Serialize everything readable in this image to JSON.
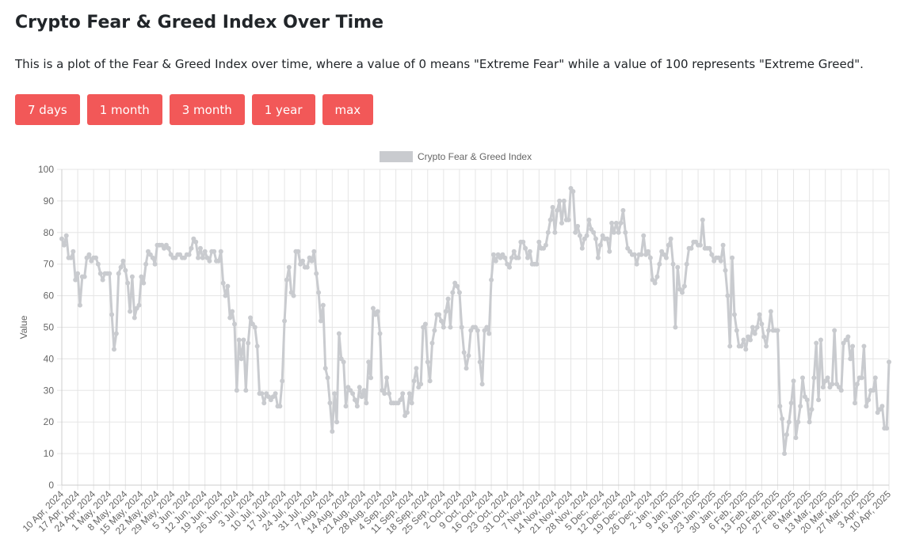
{
  "header": {
    "title": "Crypto Fear & Greed Index Over Time",
    "description": "This is a plot of the Fear & Greed Index over time, where a value of 0 means \"Extreme Fear\" while a value of 100 represents \"Extreme Greed\"."
  },
  "buttons": [
    "7 days",
    "1 month",
    "3 month",
    "1 year",
    "max"
  ],
  "chart_data": {
    "type": "line",
    "legend": "top",
    "grid": true,
    "ylabel": "Value",
    "ylim": [
      0,
      100
    ],
    "yticks": [
      0,
      10,
      20,
      30,
      40,
      50,
      60,
      70,
      80,
      90,
      100
    ],
    "categories": [
      "10 Apr, 2024",
      null,
      null,
      null,
      null,
      null,
      null,
      "17 Apr, 2024",
      null,
      null,
      null,
      null,
      null,
      null,
      "24 Apr, 2024",
      null,
      null,
      null,
      null,
      null,
      null,
      "1 May, 2024",
      null,
      null,
      null,
      null,
      null,
      null,
      "8 May, 2024",
      null,
      null,
      null,
      null,
      null,
      null,
      "15 May, 2024",
      null,
      null,
      null,
      null,
      null,
      null,
      "22 May, 2024",
      null,
      null,
      null,
      null,
      null,
      null,
      "29 May, 2024",
      null,
      null,
      null,
      null,
      null,
      null,
      "5 Jun, 2024",
      null,
      null,
      null,
      null,
      null,
      null,
      "12 Jun, 2024",
      null,
      null,
      null,
      null,
      null,
      null,
      "19 Jun, 2024",
      null,
      null,
      null,
      null,
      null,
      null,
      "26 Jun, 2024",
      null,
      null,
      null,
      null,
      null,
      null,
      "3 Jul, 2024",
      null,
      null,
      null,
      null,
      null,
      null,
      "10 Jul, 2024",
      null,
      null,
      null,
      null,
      null,
      null,
      "17 Jul, 2024",
      null,
      null,
      null,
      null,
      null,
      null,
      "24 Jul, 2024",
      null,
      null,
      null,
      null,
      null,
      null,
      "31 Jul, 2024",
      null,
      null,
      null,
      null,
      null,
      null,
      "7 Aug, 2024",
      null,
      null,
      null,
      null,
      null,
      null,
      "14 Aug, 2024",
      null,
      null,
      null,
      null,
      null,
      null,
      "21 Aug, 2024",
      null,
      null,
      null,
      null,
      null,
      null,
      "28 Aug, 2024",
      null,
      null,
      null,
      null,
      null,
      null,
      "4 Sep, 2024",
      null,
      null,
      null,
      null,
      null,
      null,
      "11 Sep, 2024",
      null,
      null,
      null,
      null,
      null,
      null,
      "18 Sep, 2024",
      null,
      null,
      null,
      null,
      null,
      null,
      "25 Sep, 2024",
      null,
      null,
      null,
      null,
      null,
      null,
      "2 Oct, 2024",
      null,
      null,
      null,
      null,
      null,
      null,
      "9 Oct, 2024",
      null,
      null,
      null,
      null,
      null,
      null,
      "16 Oct, 2024",
      null,
      null,
      null,
      null,
      null,
      null,
      "23 Oct, 2024",
      null,
      null,
      null,
      null,
      null,
      null,
      "31 Oct, 2024",
      null,
      null,
      null,
      null,
      null,
      null,
      "7 Nov, 2024",
      null,
      null,
      null,
      null,
      null,
      null,
      "14 Nov, 2024",
      null,
      null,
      null,
      null,
      null,
      null,
      "21 Nov, 2024",
      null,
      null,
      null,
      null,
      null,
      null,
      "28 Nov, 2024",
      null,
      null,
      null,
      null,
      null,
      null,
      "5 Dec, 2024",
      null,
      null,
      null,
      null,
      null,
      null,
      "12 Dec, 2024",
      null,
      null,
      null,
      null,
      null,
      null,
      "19 Dec, 2024",
      null,
      null,
      null,
      null,
      null,
      null,
      "26 Dec, 2024",
      null,
      null,
      null,
      null,
      null,
      null,
      "2 Jan, 2025",
      null,
      null,
      null,
      null,
      null,
      null,
      "9 Jan, 2025",
      null,
      null,
      null,
      null,
      null,
      null,
      "16 Jan, 2025",
      null,
      null,
      null,
      null,
      null,
      null,
      "23 Jan, 2025",
      null,
      null,
      null,
      null,
      null,
      null,
      "30 Jan, 2025",
      null,
      null,
      null,
      null,
      null,
      null,
      "6 Feb, 2025",
      null,
      null,
      null,
      null,
      null,
      null,
      "13 Feb, 2025",
      null,
      null,
      null,
      null,
      null,
      null,
      "20 Feb, 2025",
      null,
      null,
      null,
      null,
      null,
      null,
      "27 Feb, 2025",
      null,
      null,
      null,
      null,
      null,
      null,
      "6 Mar, 2025",
      null,
      null,
      null,
      null,
      null,
      null,
      "13 Mar, 2025",
      null,
      null,
      null,
      null,
      null,
      null,
      "20 Mar, 2025",
      null,
      null,
      null,
      null,
      null,
      null,
      "27 Mar, 2025",
      null,
      null,
      null,
      null,
      null,
      null,
      "3 Apr, 2025",
      null,
      null,
      null,
      null,
      null,
      null,
      "10 Apr, 2025"
    ],
    "series": [
      {
        "name": "Crypto Fear & Greed Index",
        "color": "#c9cbcf",
        "values": [
          78,
          76,
          79,
          72,
          72,
          74,
          65,
          67,
          57,
          66,
          66,
          72,
          73,
          71,
          72,
          72,
          70,
          67,
          65,
          67,
          67,
          67,
          54,
          43,
          48,
          67,
          69,
          71,
          68,
          64,
          55,
          66,
          53,
          56,
          57,
          66,
          64,
          70,
          74,
          73,
          72,
          70,
          76,
          76,
          76,
          75,
          76,
          75,
          73,
          72,
          72,
          73,
          73,
          72,
          72,
          73,
          73,
          75,
          78,
          77,
          72,
          75,
          72,
          74,
          72,
          71,
          74,
          74,
          71,
          71,
          74,
          64,
          60,
          63,
          53,
          55,
          51,
          30,
          46,
          40,
          46,
          30,
          45,
          53,
          51,
          50,
          44,
          29,
          29,
          26,
          29,
          28,
          27,
          28,
          29,
          25,
          25,
          33,
          52,
          65,
          69,
          61,
          60,
          74,
          74,
          70,
          71,
          69,
          69,
          72,
          71,
          74,
          67,
          61,
          52,
          57,
          37,
          34,
          26,
          17,
          29,
          20,
          48,
          40,
          39,
          25,
          31,
          30,
          29,
          27,
          25,
          31,
          28,
          30,
          26,
          39,
          34,
          56,
          54,
          55,
          48,
          30,
          29,
          34,
          29,
          26,
          26,
          26,
          26,
          27,
          29,
          22,
          23,
          29,
          26,
          33,
          37,
          31,
          32,
          50,
          51,
          39,
          33,
          45,
          49,
          54,
          54,
          52,
          50,
          55,
          59,
          50,
          61,
          64,
          63,
          61,
          50,
          42,
          37,
          41,
          49,
          50,
          50,
          49,
          39,
          32,
          49,
          50,
          48,
          65,
          73,
          71,
          73,
          72,
          73,
          72,
          70,
          69,
          72,
          74,
          72,
          72,
          77,
          77,
          75,
          72,
          74,
          70,
          70,
          70,
          77,
          75,
          75,
          76,
          80,
          84,
          88,
          80,
          87,
          90,
          83,
          90,
          84,
          84,
          94,
          93,
          80,
          82,
          79,
          75,
          78,
          79,
          84,
          81,
          80,
          78,
          72,
          76,
          79,
          78,
          78,
          74,
          83,
          80,
          83,
          80,
          83,
          87,
          80,
          75,
          74,
          73,
          73,
          70,
          73,
          73,
          79,
          73,
          74,
          72,
          65,
          64,
          66,
          70,
          74,
          73,
          72,
          76,
          78,
          70,
          50,
          69,
          62,
          61,
          63,
          70,
          75,
          75,
          77,
          77,
          76,
          76,
          84,
          75,
          75,
          75,
          73,
          71,
          72,
          72,
          71,
          76,
          68,
          60,
          44,
          72,
          54,
          49,
          44,
          44,
          46,
          43,
          47,
          46,
          50,
          48,
          50,
          54,
          51,
          47,
          44,
          49,
          55,
          49,
          49,
          49,
          25,
          21,
          10,
          16,
          20,
          26,
          33,
          15,
          20,
          25,
          34,
          28,
          27,
          20,
          24,
          34,
          45,
          27,
          46,
          31,
          33,
          34,
          31,
          32,
          49,
          32,
          31,
          30,
          45,
          46,
          47,
          40,
          44,
          26,
          32,
          34,
          34,
          44,
          25,
          27,
          30,
          30,
          34,
          23,
          24,
          25,
          18,
          18,
          39
        ]
      }
    ]
  }
}
